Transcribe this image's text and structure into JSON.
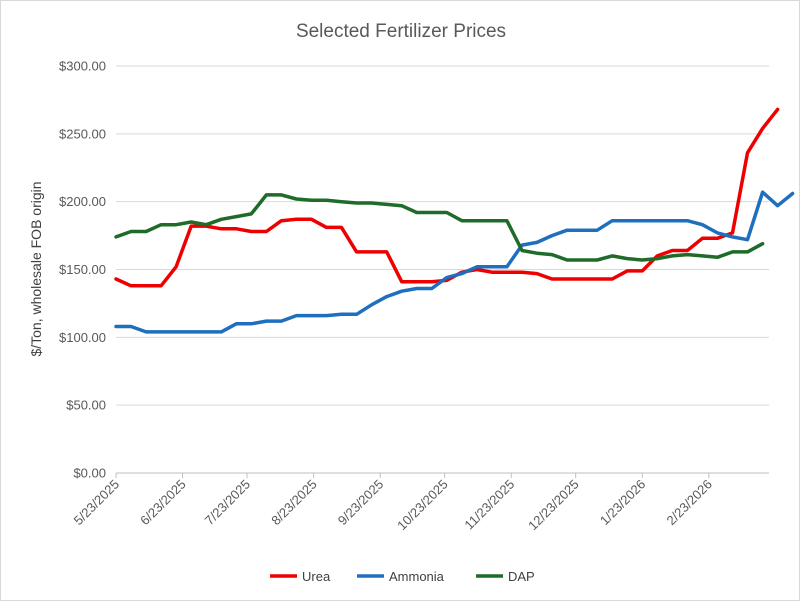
{
  "chart_data": {
    "type": "line",
    "title": "Selected Fertilizer Prices",
    "xlabel": "",
    "ylabel": "$/Ton, wholesale FOB origin",
    "ylim": [
      0,
      300
    ],
    "y_ticks": [
      "$0.00",
      "$50.00",
      "$100.00",
      "$150.00",
      "$200.00",
      "$250.00",
      "$300.00"
    ],
    "grid": "horizontal",
    "legend": "bottom",
    "x_ticks": [
      "5/23/2025",
      "6/23/2025",
      "7/23/2025",
      "8/23/2025",
      "9/23/2025",
      "10/23/2025",
      "11/23/2025",
      "12/23/2025",
      "1/23/2026",
      "2/23/2026"
    ],
    "x_start": "2025-05-23",
    "x_step_days": 7,
    "series": [
      {
        "name": "Urea",
        "color": "#ee0000",
        "values": [
          143,
          138,
          138,
          138,
          152,
          182,
          182,
          180,
          180,
          178,
          178,
          186,
          187,
          187,
          181,
          181,
          163,
          163,
          163,
          141,
          141,
          141,
          142,
          148,
          150,
          148,
          148,
          148,
          147,
          143,
          143,
          143,
          143,
          143,
          149,
          149,
          160,
          164,
          164,
          173,
          173,
          177,
          236,
          254,
          268
        ]
      },
      {
        "name": "Ammonia",
        "color": "#1f6fbf",
        "values": [
          108,
          108,
          104,
          104,
          104,
          104,
          104,
          104,
          110,
          110,
          112,
          112,
          116,
          116,
          116,
          117,
          117,
          124,
          130,
          134,
          136,
          136,
          144,
          147,
          152,
          152,
          152,
          168,
          170,
          175,
          179,
          179,
          179,
          186,
          186,
          186,
          186,
          186,
          186,
          183,
          177,
          174,
          172,
          207,
          197,
          206
        ]
      },
      {
        "name": "DAP",
        "color": "#1e6b2a",
        "values": [
          174,
          178,
          178,
          183,
          183,
          185,
          183,
          187,
          189,
          191,
          205,
          205,
          202,
          201,
          201,
          200,
          199,
          199,
          198,
          197,
          192,
          192,
          192,
          186,
          186,
          186,
          186,
          164,
          162,
          161,
          157,
          157,
          157,
          160,
          158,
          157,
          158,
          160,
          161,
          160,
          159,
          163,
          163,
          169
        ]
      }
    ]
  }
}
